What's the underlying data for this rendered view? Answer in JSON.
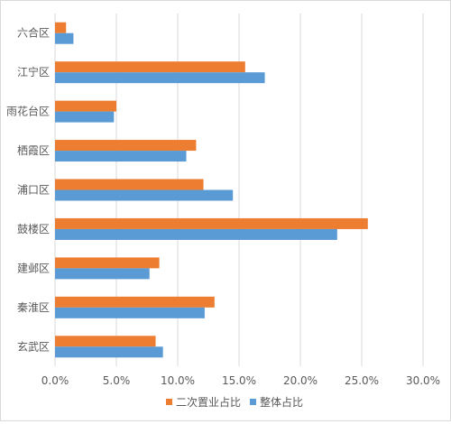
{
  "chart_data": {
    "type": "bar",
    "orientation": "horizontal",
    "categories": [
      "六合区",
      "江宁区",
      "雨花台区",
      "栖霞区",
      "浦口区",
      "鼓楼区",
      "建邺区",
      "秦淮区",
      "玄武区"
    ],
    "series": [
      {
        "name": "二次置业占比",
        "color": "#ED7D31",
        "values": [
          0.9,
          15.5,
          5.0,
          11.5,
          12.1,
          25.5,
          8.5,
          13.0,
          8.2
        ]
      },
      {
        "name": "整体占比",
        "color": "#5B9BD5",
        "values": [
          1.5,
          17.1,
          4.8,
          10.7,
          14.5,
          23.0,
          7.7,
          12.2,
          8.8
        ]
      }
    ],
    "xlim": [
      0,
      30
    ],
    "x_ticks": [
      "0.0%",
      "5.0%",
      "10.0%",
      "15.0%",
      "20.0%",
      "25.0%",
      "30.0%"
    ],
    "grid": true,
    "legend_position": "bottom"
  }
}
